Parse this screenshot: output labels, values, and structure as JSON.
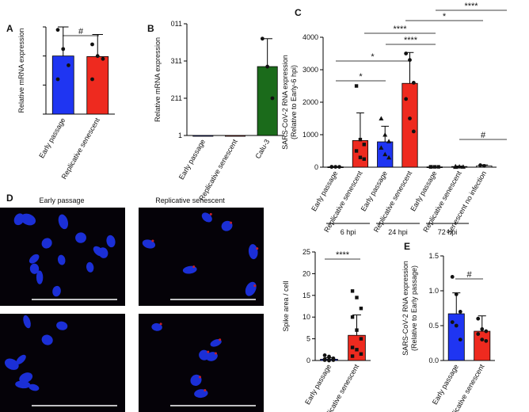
{
  "chart_data": [
    {
      "panel": "A",
      "type": "bar",
      "ylabel": [
        "Relative mRNA expression"
      ],
      "categories": [
        "Early passage",
        "Replicative senescent"
      ],
      "values": [
        1.0,
        0.99
      ],
      "errors": [
        0.5,
        0.38
      ],
      "colors": [
        "#1f35f2",
        "#ee2a1f"
      ],
      "points": [
        [
          1.45,
          1.12,
          0.84,
          0.6
        ],
        [
          1.2,
          1.0,
          0.95,
          0.6
        ]
      ],
      "ylim": [
        0,
        1.5
      ],
      "yticks": [
        0,
        0.5,
        1,
        1.5
      ],
      "annotations": [
        "#"
      ]
    },
    {
      "panel": "B",
      "type": "bar",
      "ylabel": [
        "Relative mRNA expression"
      ],
      "categories": [
        "Early passage",
        "Replicative senescent",
        "Calu-3"
      ],
      "values": [
        0,
        0,
        1.85
      ],
      "errors": [
        0,
        0,
        0.75
      ],
      "colors": [
        "#1f35f2",
        "#ee2a1f",
        "#1b6b1b"
      ],
      "points": [
        [],
        [],
        [
          2.6,
          1.85,
          1.0
        ]
      ],
      "ylim": [
        0,
        3
      ],
      "yticks": [
        {
          "value": 0,
          "label": "1"
        },
        {
          "value": 1,
          "label": "211"
        },
        {
          "value": 2,
          "label": "311"
        },
        {
          "value": 3,
          "label": "011"
        }
      ]
    },
    {
      "panel": "C",
      "type": "bar",
      "ylabel": [
        "SARS-CoV-2 RNA expression",
        "(Relative to Early-6 hpi)"
      ],
      "categories": [
        "Early passage",
        "Replicative senescent",
        "Early passage",
        "Replicative senescent",
        "Early passage",
        "Replicative senescent",
        "Senescent no infection"
      ],
      "values": [
        10,
        820,
        780,
        2580,
        10,
        20,
        40
      ],
      "errors": [
        0,
        850,
        480,
        950,
        0,
        15,
        30
      ],
      "colors": [
        "#222222",
        "#ee2a1f",
        "#1f35f2",
        "#ee2a1f",
        "#222222",
        "#222222",
        "#ffffff"
      ],
      "points": [
        [
          10,
          10,
          10,
          10
        ],
        [
          2500,
          850,
          700,
          500,
          300,
          250
        ],
        [
          1500,
          1000,
          800,
          600,
          400,
          300
        ],
        [
          3500,
          3300,
          2600,
          2100,
          1500,
          1100
        ],
        [
          10,
          10,
          10,
          10
        ],
        [
          30,
          20,
          15,
          10
        ],
        [
          60,
          40
        ]
      ],
      "groups": [
        "6 hpi",
        "24 hpi",
        "72 hpi"
      ],
      "ylim": [
        0,
        4000
      ],
      "yticks": [
        0,
        1000,
        2000,
        3000,
        4000
      ],
      "annotations": [
        "*",
        "*",
        "****",
        "****",
        "*",
        "****",
        "#"
      ]
    },
    {
      "type": "bar",
      "ylabel": [
        "Spike area / cell"
      ],
      "categories": [
        "Early passage",
        "Replicative senescent"
      ],
      "values": [
        0.3,
        5.8
      ],
      "errors": [
        0.35,
        4.7
      ],
      "colors": [
        "#1f35f2",
        "#ee2a1f"
      ],
      "points": [
        [
          1.2,
          0.9,
          0.5,
          0.3,
          0.2,
          0.1,
          0.1,
          0
        ],
        [
          16,
          14.5,
          12,
          10,
          7,
          5,
          3,
          2.5,
          1.5,
          1
        ]
      ],
      "ylim": [
        0,
        25
      ],
      "yticks": [
        0,
        5,
        10,
        15,
        20,
        25
      ],
      "annotations": [
        "****"
      ]
    },
    {
      "panel": "E",
      "type": "bar",
      "ylabel": [
        "SARS-CoV-2 RNA expression",
        "(Relative to Early passage)"
      ],
      "categories": [
        "Early passage",
        "Replicative senescent"
      ],
      "values": [
        0.67,
        0.42
      ],
      "errors": [
        0.3,
        0.22
      ],
      "colors": [
        "#1f35f2",
        "#ee2a1f"
      ],
      "points": [
        [
          1.2,
          0.95,
          0.7,
          0.55,
          0.5,
          0.3
        ],
        [
          0.6,
          0.45,
          0.42,
          0.38,
          0.3,
          0.28
        ]
      ],
      "ylim": [
        0,
        1.5
      ],
      "yticks": [
        {
          "value": 0,
          "label": "0.0"
        },
        {
          "value": 0.5,
          "label": "0.5"
        },
        {
          "value": 1,
          "label": "1.0"
        },
        {
          "value": 1.5,
          "label": "1.5"
        }
      ],
      "annotations": [
        "#"
      ]
    }
  ],
  "micrographs": {
    "panel": "D",
    "columns": [
      "Early passage",
      "Replicative senescent"
    ]
  }
}
